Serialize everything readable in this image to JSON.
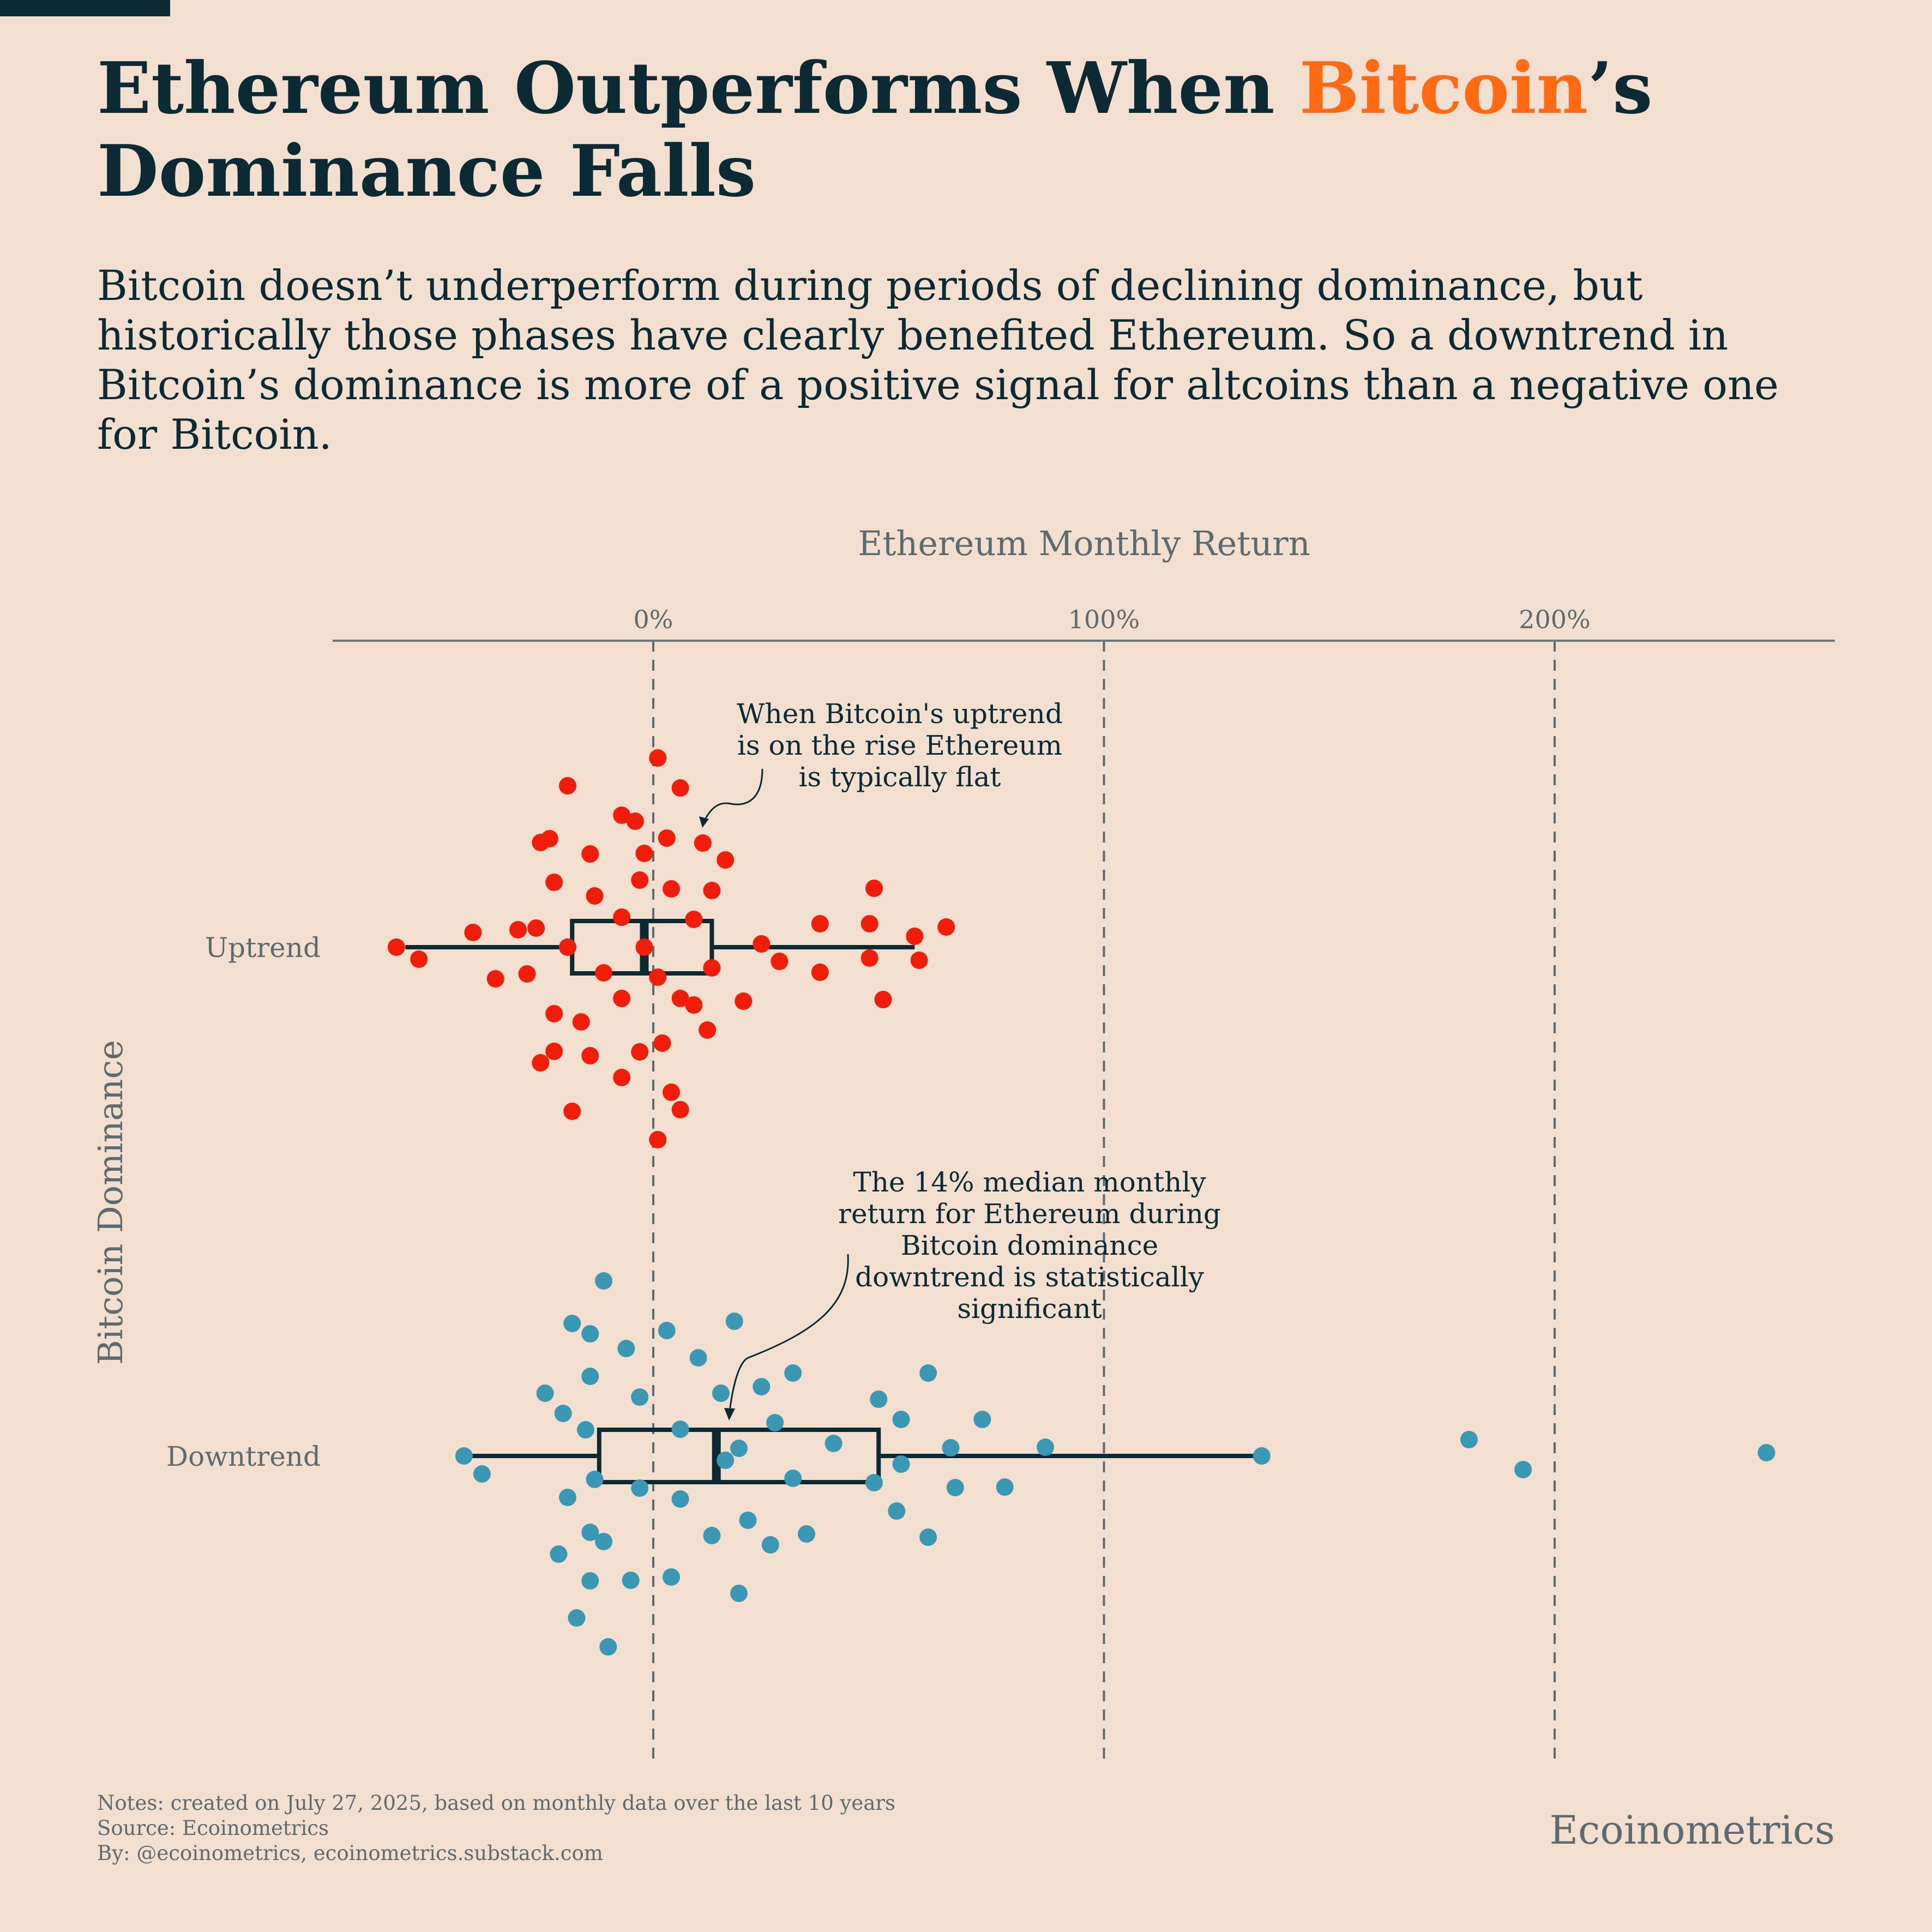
{
  "header": {
    "title_before": "Ethereum Outperforms When ",
    "title_accent": "Bitcoin",
    "title_after": "’s Dominance Falls",
    "subtitle": "Bitcoin doesn’t underperform during periods of declining dominance, but historically those phases have clearly benefited Ethereum. So a downtrend in Bitcoin’s dominance is more of a positive signal for altcoins than a negative one for Bitcoin."
  },
  "colors": {
    "background": "#f3dfcf",
    "ink": "#0c2a33",
    "accent": "#ff6a13",
    "uptrend": "#f01d0a",
    "downtrend": "#3a98b4",
    "muted": "#5d6b70"
  },
  "chart_data": {
    "type": "scatter",
    "subtype": "strip-plot-with-boxplot",
    "orientation": "horizontal",
    "xlabel": "Ethereum Monthly Return",
    "ylabel": "Bitcoin Dominance",
    "xlim": [
      -71,
      262
    ],
    "xticks": [
      0,
      100,
      200
    ],
    "xtick_labels": [
      "0%",
      "100%",
      "200%"
    ],
    "grid": "vertical dashed at ticks",
    "x_axis_position": "top",
    "categories": [
      "Uptrend",
      "Downtrend"
    ],
    "series": [
      {
        "name": "Uptrend",
        "color": "#f01d0a",
        "box": {
          "whisker_low": -55,
          "q1": -18,
          "median": -2,
          "q3": 13,
          "whisker_high": 58
        },
        "points": [
          [
            -57,
            0.0
          ],
          [
            -52,
            -0.22
          ],
          [
            -40,
            0.27
          ],
          [
            -35,
            -0.58
          ],
          [
            -30,
            0.32
          ],
          [
            -28,
            -0.49
          ],
          [
            -26,
            0.35
          ],
          [
            -25,
            1.92
          ],
          [
            -25,
            -2.12
          ],
          [
            -23,
            1.99
          ],
          [
            -22,
            1.19
          ],
          [
            -22,
            -1.22
          ],
          [
            -22,
            -1.91
          ],
          [
            -19,
            2.96
          ],
          [
            -19,
            0.0
          ],
          [
            -18,
            -3.01
          ],
          [
            -16,
            -1.37
          ],
          [
            -14,
            1.71
          ],
          [
            -14,
            -1.99
          ],
          [
            -13,
            0.94
          ],
          [
            -11,
            -0.47
          ],
          [
            -7,
            2.42
          ],
          [
            -7,
            0.55
          ],
          [
            -7,
            -2.39
          ],
          [
            -7,
            -0.94
          ],
          [
            -4,
            2.31
          ],
          [
            -3,
            -1.92
          ],
          [
            -3,
            1.23
          ],
          [
            -2,
            0.0
          ],
          [
            -2,
            1.72
          ],
          [
            1,
            -0.55
          ],
          [
            1,
            3.47
          ],
          [
            1,
            -3.53
          ],
          [
            2,
            -1.76
          ],
          [
            3,
            2.0
          ],
          [
            4,
            -2.66
          ],
          [
            4,
            1.07
          ],
          [
            6,
            2.92
          ],
          [
            6,
            -2.98
          ],
          [
            6,
            -0.94
          ],
          [
            9,
            0.51
          ],
          [
            9,
            -1.06
          ],
          [
            11,
            1.91
          ],
          [
            12,
            -1.52
          ],
          [
            13,
            1.04
          ],
          [
            13,
            -0.38
          ],
          [
            16,
            1.6
          ],
          [
            20,
            -0.99
          ],
          [
            24,
            0.06
          ],
          [
            28,
            -0.26
          ],
          [
            37,
            0.43
          ],
          [
            37,
            -0.46
          ],
          [
            48,
            0.43
          ],
          [
            48,
            -0.2
          ],
          [
            49,
            1.08
          ],
          [
            51,
            -0.96
          ],
          [
            58,
            0.2
          ],
          [
            59,
            -0.24
          ],
          [
            65,
            0.37
          ]
        ]
      },
      {
        "name": "Downtrend",
        "color": "#3a98b4",
        "box": {
          "whisker_low": -41,
          "q1": -12,
          "median": 14,
          "q3": 50,
          "whisker_high": 135
        },
        "points": [
          [
            -42,
            0.0
          ],
          [
            -38,
            -0.33
          ],
          [
            -24,
            1.15
          ],
          [
            -21,
            -1.8
          ],
          [
            -20,
            0.78
          ],
          [
            -19,
            -0.76
          ],
          [
            -18,
            2.43
          ],
          [
            -17,
            -2.97
          ],
          [
            -15,
            0.48
          ],
          [
            -14,
            2.24
          ],
          [
            -14,
            1.46
          ],
          [
            -14,
            -1.4
          ],
          [
            -14,
            -2.29
          ],
          [
            -13,
            -0.43
          ],
          [
            -11,
            -1.57
          ],
          [
            -11,
            3.21
          ],
          [
            -10,
            -3.5
          ],
          [
            -6,
            1.97
          ],
          [
            -5,
            -2.28
          ],
          [
            -3,
            1.08
          ],
          [
            -3,
            -0.59
          ],
          [
            3,
            2.3
          ],
          [
            4,
            -2.22
          ],
          [
            6,
            -0.79
          ],
          [
            6,
            0.49
          ],
          [
            10,
            1.8
          ],
          [
            13,
            -1.46
          ],
          [
            15,
            1.15
          ],
          [
            16,
            -0.08
          ],
          [
            18,
            2.47
          ],
          [
            19,
            -2.52
          ],
          [
            19,
            0.14
          ],
          [
            21,
            -1.18
          ],
          [
            24,
            1.27
          ],
          [
            26,
            -1.63
          ],
          [
            27,
            0.61
          ],
          [
            31,
            -0.41
          ],
          [
            31,
            1.52
          ],
          [
            34,
            -1.43
          ],
          [
            40,
            0.23
          ],
          [
            49,
            -0.49
          ],
          [
            50,
            1.04
          ],
          [
            54,
            -1.01
          ],
          [
            55,
            0.67
          ],
          [
            55,
            -0.15
          ],
          [
            61,
            1.52
          ],
          [
            61,
            -1.49
          ],
          [
            66,
            0.15
          ],
          [
            67,
            -0.58
          ],
          [
            73,
            0.67
          ],
          [
            78,
            -0.57
          ],
          [
            87,
            0.16
          ],
          [
            135,
            0.0
          ],
          [
            181,
            0.3
          ],
          [
            193,
            -0.25
          ],
          [
            247,
            0.06
          ]
        ]
      }
    ],
    "annotations": [
      "When Bitcoin's uptrend is on the rise Ethereum is typically flat",
      "The 14% median monthly return for Ethereum during Bitcoin dominance downtrend is statistically significant"
    ]
  },
  "footer": {
    "notes": "Notes: created on July 27, 2025, based on monthly data over the last 10 years",
    "source": "Source: Ecoinometrics",
    "by": "By: @ecoinometrics, ecoinometrics.substack.com",
    "brand": "Ecoinometrics"
  }
}
